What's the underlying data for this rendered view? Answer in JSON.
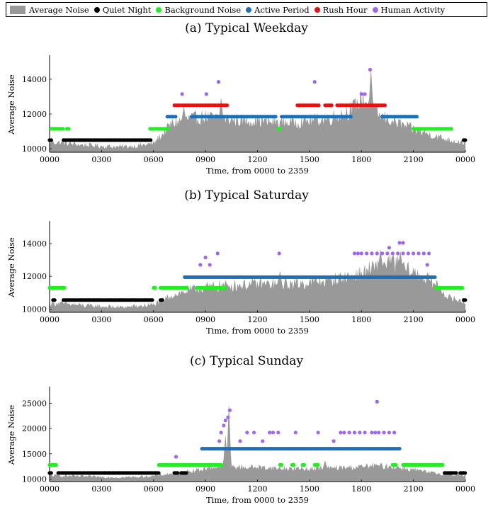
{
  "legend": [
    {
      "label": "Average Noise",
      "kind": "area",
      "color": "#999999"
    },
    {
      "label": "Quiet Night",
      "kind": "dot",
      "color": "#000000"
    },
    {
      "label": "Background Noise",
      "kind": "dot",
      "color": "#22ee22"
    },
    {
      "label": "Active Period",
      "kind": "dot",
      "color": "#1f6fb8"
    },
    {
      "label": "Rush Hour",
      "kind": "dot",
      "color": "#e81010"
    },
    {
      "label": "Human Activity",
      "kind": "dot",
      "color": "#a066ee"
    }
  ],
  "chart_data": [
    {
      "type": "area",
      "title": "(a) Typical Weekday",
      "xlabel": "Time, from 0000 to 2359",
      "ylabel": "Average Noise",
      "xticks": [
        "0000",
        "0300",
        "0600",
        "0900",
        "1200",
        "1500",
        "1800",
        "2100",
        "0000"
      ],
      "yticks": [
        10000,
        12000,
        14000
      ],
      "ylim": [
        9800,
        15300
      ],
      "noise_profile": {
        "hours": [
          0,
          1,
          2,
          3,
          4,
          5,
          6,
          6.5,
          7,
          8,
          9,
          10,
          11,
          12,
          13,
          14,
          15,
          16,
          17,
          17.5,
          18,
          18.5,
          19,
          20,
          21,
          22,
          23,
          24
        ],
        "values": [
          10400,
          10300,
          10200,
          10150,
          10100,
          10150,
          10300,
          10800,
          11400,
          11700,
          11800,
          11700,
          11600,
          11600,
          11500,
          11500,
          11600,
          11700,
          12000,
          12300,
          12800,
          12600,
          11900,
          11500,
          11100,
          10800,
          10500,
          10350
        ],
        "spikes": [
          {
            "hour": 7.75,
            "value": 12400
          },
          {
            "hour": 9.9,
            "value": 12900
          },
          {
            "hour": 18.55,
            "value": 14500
          }
        ]
      },
      "categories": [
        {
          "name": "Quiet Night",
          "level": 10500,
          "segments": [
            [
              0,
              0.1
            ],
            [
              0.8,
              5.9
            ],
            [
              23.9,
              24
            ]
          ]
        },
        {
          "name": "Background Noise",
          "level": 11150,
          "segments": [
            [
              0.1,
              0.8
            ],
            [
              1,
              1.1
            ],
            [
              5.8,
              6.9
            ],
            [
              13.2,
              13.3
            ],
            [
              21,
              23.2
            ]
          ]
        },
        {
          "name": "Active Period",
          "level": 11850,
          "segments": [
            [
              6.8,
              7.3
            ],
            [
              8.2,
              13.1
            ],
            [
              13.4,
              17.4
            ],
            [
              19.2,
              21.2
            ]
          ]
        },
        {
          "name": "Rush Hour",
          "level": 12500,
          "segments": [
            [
              7.2,
              10.3
            ],
            [
              14.3,
              15.6
            ],
            [
              15.9,
              16.3
            ],
            [
              16.6,
              19.4
            ]
          ]
        }
      ],
      "events": {
        "name": "Human Activity",
        "points": [
          [
            7.65,
            13150
          ],
          [
            9.05,
            13150
          ],
          [
            9.75,
            13850
          ],
          [
            15.3,
            13850
          ],
          [
            18.0,
            13150
          ],
          [
            18.2,
            13150
          ],
          [
            18.5,
            14550
          ]
        ]
      }
    },
    {
      "type": "area",
      "title": "(b) Typical Saturday",
      "xlabel": "Time, from 0000 to 2359",
      "ylabel": "Average Noise",
      "xticks": [
        "0000",
        "0300",
        "0600",
        "0900",
        "1200",
        "1500",
        "1800",
        "2100",
        "0000"
      ],
      "yticks": [
        10000,
        12000,
        14000
      ],
      "ylim": [
        9800,
        15300
      ],
      "noise_profile": {
        "hours": [
          0,
          1,
          2,
          3,
          4,
          5,
          6,
          6.5,
          7,
          8,
          9,
          10,
          11,
          12,
          13,
          14,
          15,
          16,
          17,
          18,
          18.5,
          19,
          19.5,
          20,
          21,
          22,
          22.5,
          23,
          24
        ],
        "values": [
          10350,
          10300,
          10200,
          10150,
          10100,
          10150,
          10250,
          10500,
          10800,
          11100,
          11300,
          11400,
          11450,
          11500,
          11500,
          11500,
          11600,
          11700,
          11900,
          12100,
          12400,
          12500,
          12900,
          12700,
          12200,
          11700,
          11300,
          10700,
          10400
        ],
        "spikes": [
          {
            "hour": 19.1,
            "value": 13600
          },
          {
            "hour": 20.25,
            "value": 13500
          },
          {
            "hour": 13.3,
            "value": 12300
          }
        ]
      },
      "categories": [
        {
          "name": "Quiet Night",
          "level": 10550,
          "segments": [
            [
              0.2,
              0.3
            ],
            [
              0.8,
              6.0
            ],
            [
              6.4,
              6.5
            ],
            [
              23.9,
              24
            ]
          ]
        },
        {
          "name": "Background Noise",
          "level": 11300,
          "segments": [
            [
              0,
              0.9
            ],
            [
              6.0,
              6.1
            ],
            [
              6.4,
              8.0
            ],
            [
              8.5,
              10.2
            ],
            [
              22.3,
              23.9
            ]
          ]
        },
        {
          "name": "Active Period",
          "level": 11950,
          "segments": [
            [
              7.8,
              22.3
            ]
          ]
        }
      ],
      "events": {
        "name": "Human Activity",
        "points": [
          [
            8.7,
            12700
          ],
          [
            9.25,
            12700
          ],
          [
            9.0,
            13150
          ],
          [
            9.7,
            13400
          ],
          [
            13.25,
            13400
          ],
          [
            17.6,
            13400
          ],
          [
            17.8,
            13400
          ],
          [
            18.0,
            13400
          ],
          [
            18.3,
            13400
          ],
          [
            18.6,
            13400
          ],
          [
            18.9,
            13400
          ],
          [
            19.2,
            13400
          ],
          [
            19.5,
            13400
          ],
          [
            19.8,
            13400
          ],
          [
            20.1,
            13400
          ],
          [
            20.4,
            13400
          ],
          [
            20.7,
            13400
          ],
          [
            21.0,
            13400
          ],
          [
            21.3,
            13400
          ],
          [
            21.6,
            13400
          ],
          [
            21.9,
            13400
          ],
          [
            19.6,
            13750
          ],
          [
            20.2,
            14050
          ],
          [
            20.4,
            14050
          ],
          [
            21.8,
            12700
          ]
        ]
      }
    },
    {
      "type": "area",
      "title": "(c) Typical Sunday",
      "xlabel": "Time, from 0000 to 2359",
      "ylabel": "Average Noise",
      "xticks": [
        "0000",
        "0300",
        "0600",
        "0900",
        "1200",
        "1500",
        "1800",
        "2100",
        "0000"
      ],
      "yticks": [
        10000,
        15000,
        20000,
        25000
      ],
      "ylim": [
        9500,
        28000
      ],
      "noise_profile": {
        "hours": [
          0,
          1,
          2,
          3,
          4,
          5,
          6,
          7,
          8,
          9,
          10,
          10.3,
          10.5,
          11,
          12,
          13,
          14,
          15,
          16,
          17,
          18,
          19,
          20,
          21,
          22,
          23,
          24
        ],
        "values": [
          10700,
          10600,
          10500,
          10400,
          10300,
          10400,
          10600,
          11000,
          11500,
          12000,
          12600,
          13500,
          12500,
          12300,
          12300,
          12100,
          12000,
          12000,
          12100,
          12200,
          12400,
          12600,
          12300,
          11800,
          11200,
          10900,
          10700
        ],
        "spikes": [
          {
            "hour": 10.35,
            "value": 24500
          },
          {
            "hour": 10.15,
            "value": 18500
          },
          {
            "hour": 15.9,
            "value": 13600
          }
        ]
      },
      "categories": [
        {
          "name": "Quiet Night",
          "level": 11200,
          "segments": [
            [
              0,
              0.1
            ],
            [
              0.5,
              6.3
            ],
            [
              7.2,
              7.4
            ],
            [
              7.6,
              7.9
            ],
            [
              22.8,
              23.5
            ],
            [
              23.7,
              24
            ]
          ]
        },
        {
          "name": "Background Noise",
          "level": 12800,
          "segments": [
            [
              0,
              0.4
            ],
            [
              6.3,
              10.0
            ],
            [
              13.3,
              13.4
            ],
            [
              14.0,
              14.1
            ],
            [
              14.6,
              14.7
            ],
            [
              15.3,
              15.5
            ],
            [
              19.8,
              20.0
            ],
            [
              20.4,
              22.7
            ]
          ]
        },
        {
          "name": "Active Period",
          "level": 16000,
          "segments": [
            [
              8.8,
              20.2
            ]
          ]
        }
      ],
      "events": {
        "name": "Human Activity",
        "points": [
          [
            7.3,
            14400
          ],
          [
            9.8,
            17500
          ],
          [
            9.9,
            19200
          ],
          [
            10.05,
            20600
          ],
          [
            10.15,
            21600
          ],
          [
            10.3,
            22200
          ],
          [
            10.4,
            23600
          ],
          [
            11.0,
            17500
          ],
          [
            11.4,
            19200
          ],
          [
            11.8,
            19200
          ],
          [
            12.3,
            17500
          ],
          [
            12.7,
            19200
          ],
          [
            12.9,
            19200
          ],
          [
            13.2,
            19200
          ],
          [
            14.2,
            19200
          ],
          [
            15.5,
            19200
          ],
          [
            16.4,
            17500
          ],
          [
            16.8,
            19200
          ],
          [
            17.0,
            19200
          ],
          [
            17.3,
            19200
          ],
          [
            17.6,
            19200
          ],
          [
            17.9,
            19200
          ],
          [
            18.2,
            19200
          ],
          [
            18.6,
            19200
          ],
          [
            18.8,
            19200
          ],
          [
            19.0,
            19200
          ],
          [
            19.3,
            19200
          ],
          [
            19.6,
            19200
          ],
          [
            19.9,
            19200
          ],
          [
            18.9,
            25300
          ]
        ]
      }
    }
  ]
}
